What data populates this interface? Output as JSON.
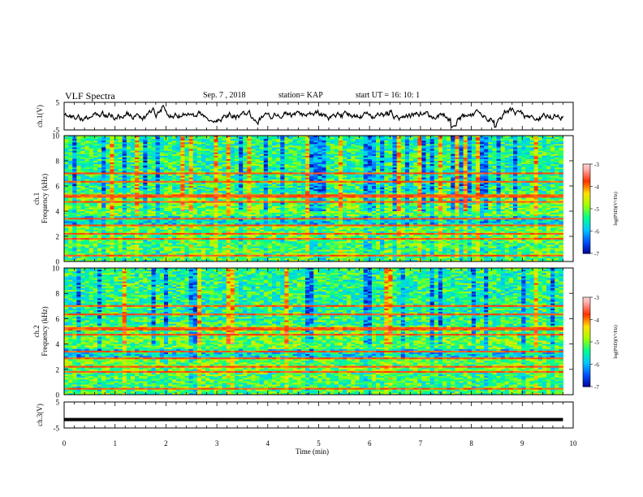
{
  "header": {
    "title": "VLF Spectra",
    "date": "Sep. 7 , 2018",
    "station": "station= KAP",
    "start": "start  UT =   16: 10: 1"
  },
  "chart_data": [
    {
      "type": "line",
      "ylabel": "ch.1(V)",
      "ylim": [
        -5,
        5
      ],
      "yticks": [
        "5",
        "-5"
      ],
      "xlim": [
        0,
        10
      ],
      "note": "waveform trace spanning roughly 0 to 9.8 min, mostly near 0 V with fluctuations of about ±3 V"
    },
    {
      "type": "heatmap",
      "ylabel": "ch.1\nFrequency (kHz)",
      "ylim": [
        0,
        10
      ],
      "yticks": [
        "0",
        "2",
        "4",
        "6",
        "8",
        "10"
      ],
      "xlim": [
        0,
        10
      ],
      "data_extent_min": 9.8,
      "colorbar": {
        "label": "log(PSD)(V²/Hz)",
        "range": [
          -7,
          -3
        ],
        "ticks": [
          "-3",
          "-4",
          "-5",
          "-6",
          "-7"
        ]
      }
    },
    {
      "type": "heatmap",
      "ylabel": "ch.2\nFrequency (kHz)",
      "ylim": [
        0,
        10
      ],
      "yticks": [
        "0",
        "2",
        "4",
        "6",
        "8",
        "10"
      ],
      "xlim": [
        0,
        10
      ],
      "data_extent_min": 9.8,
      "colorbar": {
        "label": "log(PSD)(V²/Hz)",
        "range": [
          -7,
          -3
        ],
        "ticks": [
          "-3",
          "-4",
          "-5",
          "-6",
          "-7"
        ]
      }
    },
    {
      "type": "line",
      "ylabel": "ch.3(V)",
      "ylim": [
        -5,
        5
      ],
      "yticks": [
        "5",
        "-5"
      ],
      "xlim": [
        0,
        10
      ],
      "note": "constant trace at about -2 V spanning 0 to 9.8 min"
    }
  ],
  "xaxis": {
    "label": "Time (min)",
    "ticks": [
      "0",
      "1",
      "2",
      "3",
      "4",
      "5",
      "6",
      "7",
      "8",
      "9",
      "10"
    ]
  },
  "colors": {
    "colormap": [
      "#000090",
      "#0050ff",
      "#00c8ff",
      "#00ff90",
      "#a0ff00",
      "#ffe000",
      "#ff3000",
      "#ffb0b0",
      "#ffffff"
    ]
  }
}
